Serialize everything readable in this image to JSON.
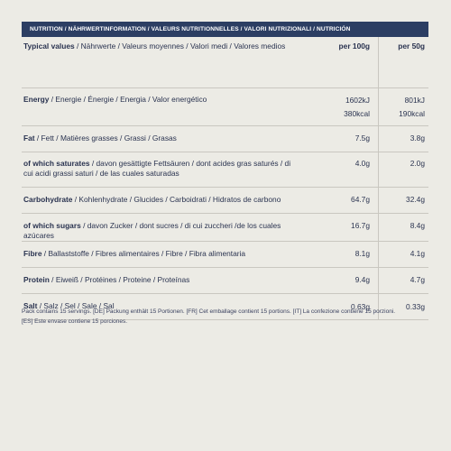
{
  "header": "NUTRITION / NÄHRWERTINFORMATION / VALEURS NUTRITIONNELLES / VALORI NUTRIZIONALI / NUTRICIÓN",
  "columns": {
    "label_bold": "Typical values",
    "label_rest": " / Nährwerte / Valeurs moyennes / Valori medi / Valores medios",
    "per100": "per 100g",
    "per50": "per 50g"
  },
  "rows": [
    {
      "bold": "Energy",
      "rest": " / Energie / Énergie / Energia / Valor energético",
      "v100a": "1602kJ",
      "v100b": "380kcal",
      "v50a": "801kJ",
      "v50b": "190kcal"
    },
    {
      "bold": "Fat",
      "rest": " / Fett / Matières grasses / Grassi / Grasas",
      "v100a": "7.5g",
      "v50a": "3.8g"
    },
    {
      "bold": "of which saturates",
      "rest": " / davon gesättigte Fettsäuren / dont acides gras saturés / di cui acidi grassi saturi / de las cuales saturadas",
      "v100a": "4.0g",
      "v50a": "2.0g"
    },
    {
      "bold": "Carbohydrate",
      "rest": " / Kohlenhydrate / Glucides / Carboidrati / Hidratos de carbono",
      "v100a": "64.7g",
      "v50a": "32.4g"
    },
    {
      "bold": "of which sugars",
      "rest": " / davon Zucker / dont sucres / di cui zuccheri /de los cuales azúcares",
      "v100a": "16.7g",
      "v50a": "8.4g"
    },
    {
      "bold": "Fibre",
      "rest": " / Ballaststoffe / Fibres alimentaires / Fibre / Fibra alimentaria",
      "v100a": "8.1g",
      "v50a": "4.1g"
    },
    {
      "bold": "Protein",
      "rest": " / Eiweiß / Protéines / Proteine / Proteínas",
      "v100a": "9.4g",
      "v50a": "4.7g"
    },
    {
      "bold": "Salt",
      "rest": " / Salz / Sel / Sale / Sal",
      "v100a": "0.63g",
      "v50a": "0.33g"
    }
  ],
  "footnote": {
    "line1": "Pack contains 15 servings. [DE] Packung enthält 15 Portionen. [FR] Cet emballage contient 15 portions. [IT] La confezione contiene 15 porzioni.",
    "line2": "[ES] Este envase contiene 15 porciones."
  },
  "colors": {
    "header_bg": "#2c3e63",
    "page_bg": "#ecebe5",
    "text": "#2a3350"
  }
}
